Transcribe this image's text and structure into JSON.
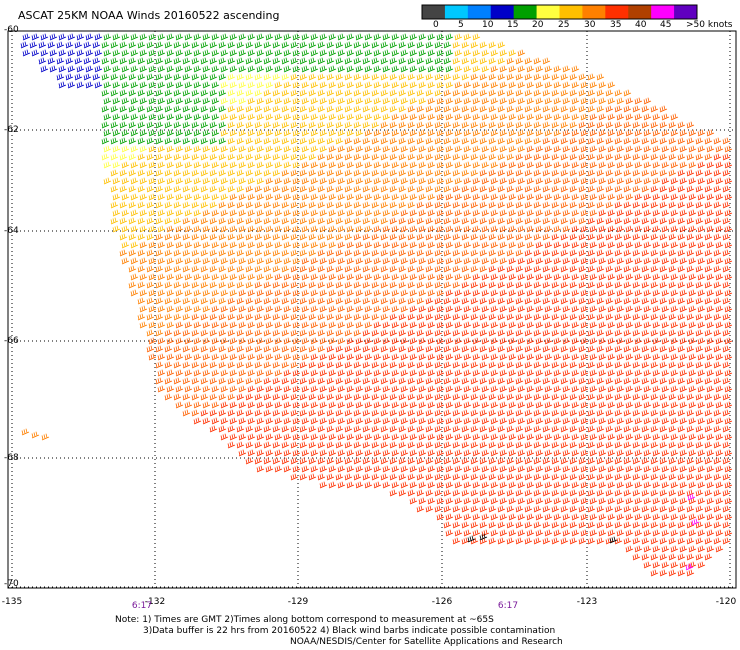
{
  "title": "ASCAT 25KM NOAA Winds 20160522 ascending",
  "legend": {
    "labels": [
      "0",
      "5",
      "10",
      "15",
      "20",
      "25",
      "30",
      "35",
      "40",
      "45",
      ">50 knots"
    ],
    "colors": [
      "#444444",
      "#00c8ff",
      "#0080ff",
      "#0000c8",
      "#00a000",
      "#ffff40",
      "#ffc000",
      "#ff8000",
      "#ff3000",
      "#b04000",
      "#ff00ff",
      "#6000c0"
    ]
  },
  "latitude_labels": [
    "-60",
    "-62",
    "-64",
    "-66",
    "-68",
    "-70"
  ],
  "longitude_labels": [
    "-135",
    "-132",
    "-129",
    "-126",
    "-123",
    "-120"
  ],
  "time_labels": [
    "6:17",
    "6:17"
  ],
  "notes": [
    "Note: 1) Times are GMT 2)Times along bottom correspond to measurement at ~65S",
    "3)Data buffer is 22 hrs from 20160522 4) Black wind barbs indicate possible contamination",
    "NOAA/NESDIS/Center for Satellite Applications and Research"
  ]
}
